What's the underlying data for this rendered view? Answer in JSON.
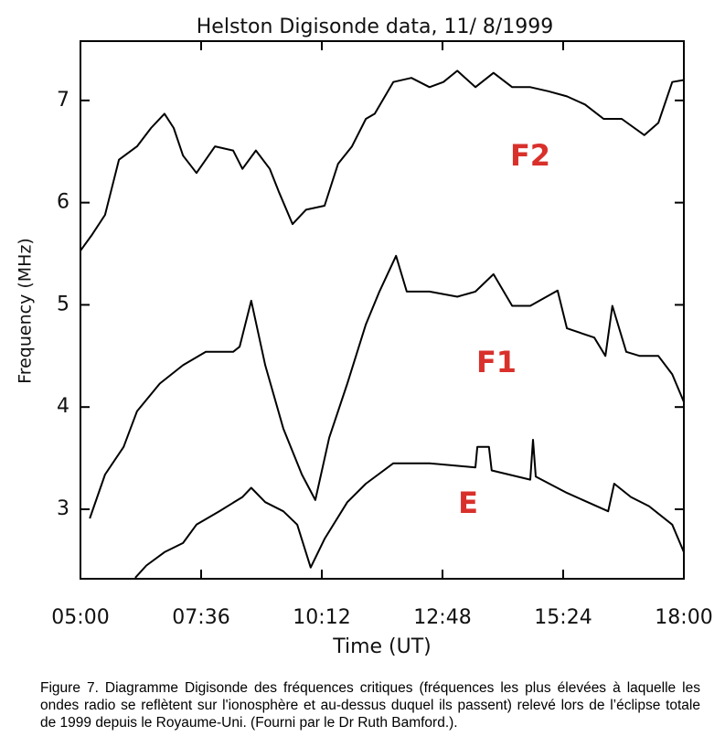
{
  "chart_data": {
    "type": "line",
    "title": "Helston Digisonde data, 11/ 8/1999",
    "x_label": "Time (UT)",
    "y_label": "Frequency (MHz)",
    "xlim": [
      5,
      18
    ],
    "ylim": [
      2.32,
      7.58
    ],
    "xticks": [
      {
        "value": 5,
        "label": "05:00"
      },
      {
        "value": 7.6,
        "label": "07:36"
      },
      {
        "value": 10.2,
        "label": "10:12"
      },
      {
        "value": 12.8,
        "label": "12:48"
      },
      {
        "value": 15.4,
        "label": "15:24"
      },
      {
        "value": 18,
        "label": "18:00"
      }
    ],
    "yticks": [
      3,
      4,
      5,
      6,
      7
    ],
    "series": [
      {
        "name": "F2",
        "color": "#000000",
        "x": [
          5.0,
          5.24,
          5.53,
          5.83,
          6.22,
          6.52,
          6.81,
          7.01,
          7.21,
          7.5,
          7.9,
          8.29,
          8.49,
          8.78,
          9.08,
          9.27,
          9.57,
          9.86,
          10.26,
          10.55,
          10.85,
          11.15,
          11.34,
          11.74,
          12.13,
          12.52,
          12.82,
          13.12,
          13.51,
          13.9,
          14.3,
          14.69,
          15.08,
          15.48,
          15.87,
          16.27,
          16.66,
          17.15,
          17.45,
          17.75,
          18.0
        ],
        "values": [
          5.53,
          5.68,
          5.88,
          6.42,
          6.55,
          6.73,
          6.87,
          6.73,
          6.46,
          6.29,
          6.55,
          6.51,
          6.33,
          6.51,
          6.33,
          6.11,
          5.79,
          5.93,
          5.97,
          6.38,
          6.55,
          6.82,
          6.87,
          7.18,
          7.22,
          7.13,
          7.18,
          7.29,
          7.13,
          7.27,
          7.13,
          7.13,
          7.09,
          7.04,
          6.96,
          6.82,
          6.82,
          6.66,
          6.78,
          7.18,
          7.2
        ]
      },
      {
        "name": "F1",
        "color": "#000000",
        "x": [
          5.2,
          5.53,
          5.93,
          6.22,
          6.71,
          7.21,
          7.7,
          8.29,
          8.43,
          8.68,
          8.98,
          9.37,
          9.77,
          10.06,
          10.36,
          10.75,
          11.15,
          11.44,
          11.8,
          12.03,
          12.52,
          13.12,
          13.51,
          13.9,
          14.3,
          14.69,
          15.28,
          15.48,
          16.07,
          16.31,
          16.46,
          16.76,
          17.05,
          17.45,
          17.75,
          18.0
        ],
        "values": [
          2.91,
          3.34,
          3.61,
          3.96,
          4.23,
          4.41,
          4.54,
          4.54,
          4.59,
          5.04,
          4.41,
          3.79,
          3.34,
          3.09,
          3.7,
          4.23,
          4.81,
          5.13,
          5.48,
          5.13,
          5.13,
          5.08,
          5.13,
          5.3,
          4.99,
          4.99,
          5.14,
          4.77,
          4.68,
          4.5,
          4.99,
          4.54,
          4.5,
          4.5,
          4.32,
          4.05
        ]
      },
      {
        "name": "E",
        "color": "#000000",
        "x": [
          6.18,
          6.42,
          6.81,
          7.21,
          7.5,
          7.99,
          8.49,
          8.68,
          8.98,
          9.37,
          9.67,
          9.96,
          10.26,
          10.75,
          11.15,
          11.74,
          12.52,
          13.51,
          13.55,
          13.8,
          13.86,
          14.69,
          14.75,
          14.81,
          15.48,
          16.37,
          16.5,
          16.86,
          17.25,
          17.75,
          18.0
        ],
        "values": [
          2.33,
          2.45,
          2.58,
          2.67,
          2.85,
          2.98,
          3.12,
          3.21,
          3.07,
          2.98,
          2.85,
          2.43,
          2.71,
          3.07,
          3.25,
          3.45,
          3.45,
          3.41,
          3.61,
          3.61,
          3.38,
          3.29,
          3.68,
          3.32,
          3.16,
          2.98,
          3.25,
          3.12,
          3.03,
          2.85,
          2.58
        ]
      }
    ],
    "label_color": "#d9302b",
    "caption": "Figure 7. Diagramme Digisonde des fréquences critiques (fréquences les plus élevées à laquelle les ondes radio se reflètent sur l'ionosphère et au-dessus duquel ils passent) relevé lors de l’éclipse totale de 1999 depuis le Royaume-Uni. (Fourni par le Dr Ruth Bamford.)."
  }
}
